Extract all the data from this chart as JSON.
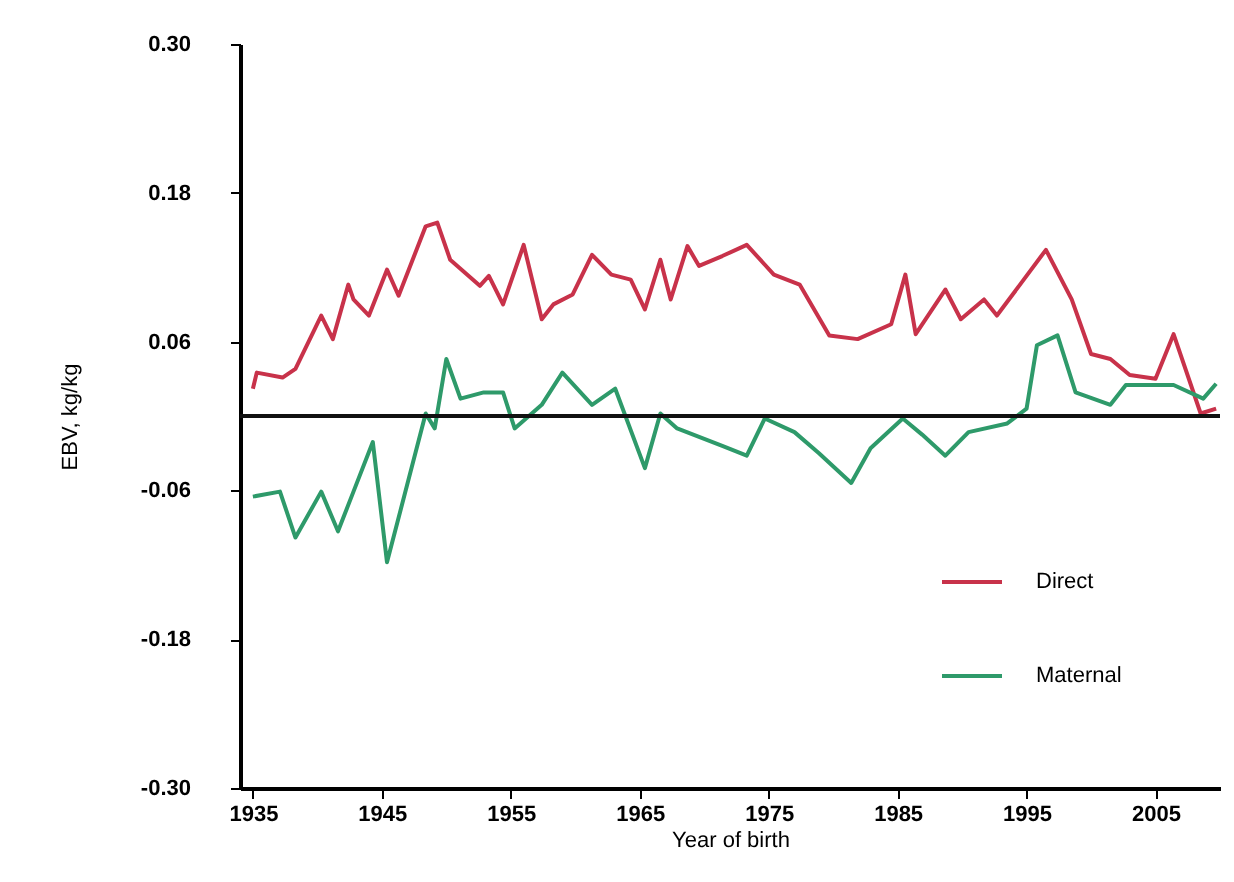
{
  "chart_data": {
    "type": "line",
    "xlabel": "Year of birth",
    "ylabel": "EBV, kg/kg",
    "xlim": [
      1934,
      2010
    ],
    "xticks": [
      1935,
      1945,
      1955,
      1965,
      1975,
      1985,
      1995,
      2005
    ],
    "ylim": [
      -0.3,
      0.3
    ],
    "yticks": [
      {
        "value": -0.3,
        "label": "-0.30"
      },
      {
        "value": -0.18,
        "label": "-0.18"
      },
      {
        "value": -0.06,
        "label": "-0.06"
      },
      {
        "value": 0.06,
        "label": "0.06"
      },
      {
        "value": 0.18,
        "label": "0.18"
      },
      {
        "value": 0.3,
        "label": "0.30"
      }
    ],
    "grid": false,
    "legend": "right",
    "marker": "none",
    "line_style": "solid",
    "ref_lines": [
      {
        "axis": "y",
        "value": 0,
        "color": "#111111"
      }
    ],
    "series": [
      {
        "name": "Direct",
        "color": "#c8324a",
        "x": [
          1935,
          1935.3,
          1937.3,
          1938.3,
          1940.3,
          1941.2,
          1942.4,
          1942.8,
          1944,
          1945.4,
          1946.3,
          1948.4,
          1949.3,
          1950.3,
          1952.6,
          1953.3,
          1954.4,
          1956,
          1957.4,
          1958.3,
          1959.8,
          1961.3,
          1962.8,
          1964.3,
          1965.4,
          1966.6,
          1967.4,
          1968.7,
          1969.6,
          1971.4,
          1973.3,
          1975.4,
          1977.4,
          1979.7,
          1981.9,
          1984.5,
          1985.6,
          1986.4,
          1988.7,
          1989.9,
          1991.7,
          1992.7,
          1996.5,
          1998.5,
          2000,
          2001.5,
          2003,
          2005,
          2006.4,
          2008.5,
          2009.7
        ],
        "values": [
          0.022,
          0.035,
          0.031,
          0.038,
          0.081,
          0.062,
          0.106,
          0.094,
          0.081,
          0.118,
          0.097,
          0.153,
          0.156,
          0.126,
          0.105,
          0.113,
          0.09,
          0.138,
          0.078,
          0.09,
          0.098,
          0.13,
          0.114,
          0.11,
          0.086,
          0.126,
          0.094,
          0.137,
          0.121,
          0.129,
          0.138,
          0.114,
          0.106,
          0.065,
          0.062,
          0.074,
          0.114,
          0.066,
          0.102,
          0.078,
          0.094,
          0.081,
          0.134,
          0.094,
          0.05,
          0.046,
          0.033,
          0.03,
          0.066,
          0.002,
          0.006
        ]
      },
      {
        "name": "Maternal",
        "color": "#2e9a6a",
        "x": [
          1935,
          1937.1,
          1938.3,
          1940.3,
          1941.6,
          1942.8,
          1944.3,
          1945.4,
          1948.4,
          1949.1,
          1950,
          1951.1,
          1952.9,
          1954.4,
          1955.3,
          1957.4,
          1959,
          1961.3,
          1963.1,
          1965.4,
          1966.6,
          1967.9,
          1971.4,
          1973.3,
          1974.7,
          1977,
          1978.9,
          1981.4,
          1982.9,
          1985.4,
          1986.9,
          1988.7,
          1990.5,
          1993.5,
          1995,
          1995.8,
          1997.4,
          1998.8,
          2001.5,
          2002.7,
          2006.4,
          2008.7,
          2009.7
        ],
        "values": [
          -0.065,
          -0.061,
          -0.098,
          -0.061,
          -0.093,
          -0.061,
          -0.021,
          -0.118,
          0.002,
          -0.01,
          0.046,
          0.014,
          0.019,
          0.019,
          -0.01,
          0.009,
          0.035,
          0.009,
          0.022,
          -0.042,
          0.002,
          -0.01,
          -0.024,
          -0.032,
          -0.002,
          -0.013,
          -0.03,
          -0.054,
          -0.026,
          -0.002,
          -0.015,
          -0.032,
          -0.013,
          -0.006,
          0.006,
          0.057,
          0.065,
          0.019,
          0.009,
          0.025,
          0.025,
          0.014,
          0.026
        ]
      }
    ]
  }
}
